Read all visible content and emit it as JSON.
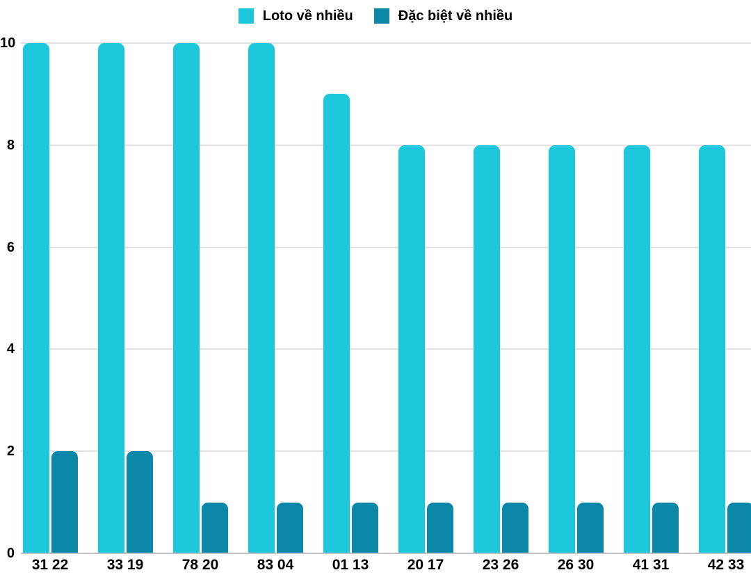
{
  "chart_data": {
    "type": "bar",
    "title": "",
    "categories": [
      "31 22",
      "33 19",
      "78 20",
      "83 04",
      "01 13",
      "20 17",
      "23 26",
      "26 30",
      "41 31",
      "42 33"
    ],
    "series": [
      {
        "name": "Loto về nhiều",
        "color": "#1dc7db",
        "values": [
          10,
          10,
          10,
          10,
          9,
          8,
          8,
          8,
          8,
          8
        ]
      },
      {
        "name": "Đặc biệt về nhiều",
        "color": "#0d87a7",
        "values": [
          2,
          2,
          1,
          1,
          1,
          1,
          1,
          1,
          1,
          1
        ]
      }
    ],
    "xlabel": "",
    "ylabel": "",
    "ylim": [
      0,
      10
    ],
    "y_ticks": [
      0,
      2,
      4,
      6,
      8,
      10
    ],
    "grid": "horizontal-only",
    "legend_position": "top-center",
    "colors": {
      "gridline": "#e0e0e0",
      "baseline": "#c2c2c2",
      "label": "#000000",
      "background": "#ffffff"
    }
  }
}
